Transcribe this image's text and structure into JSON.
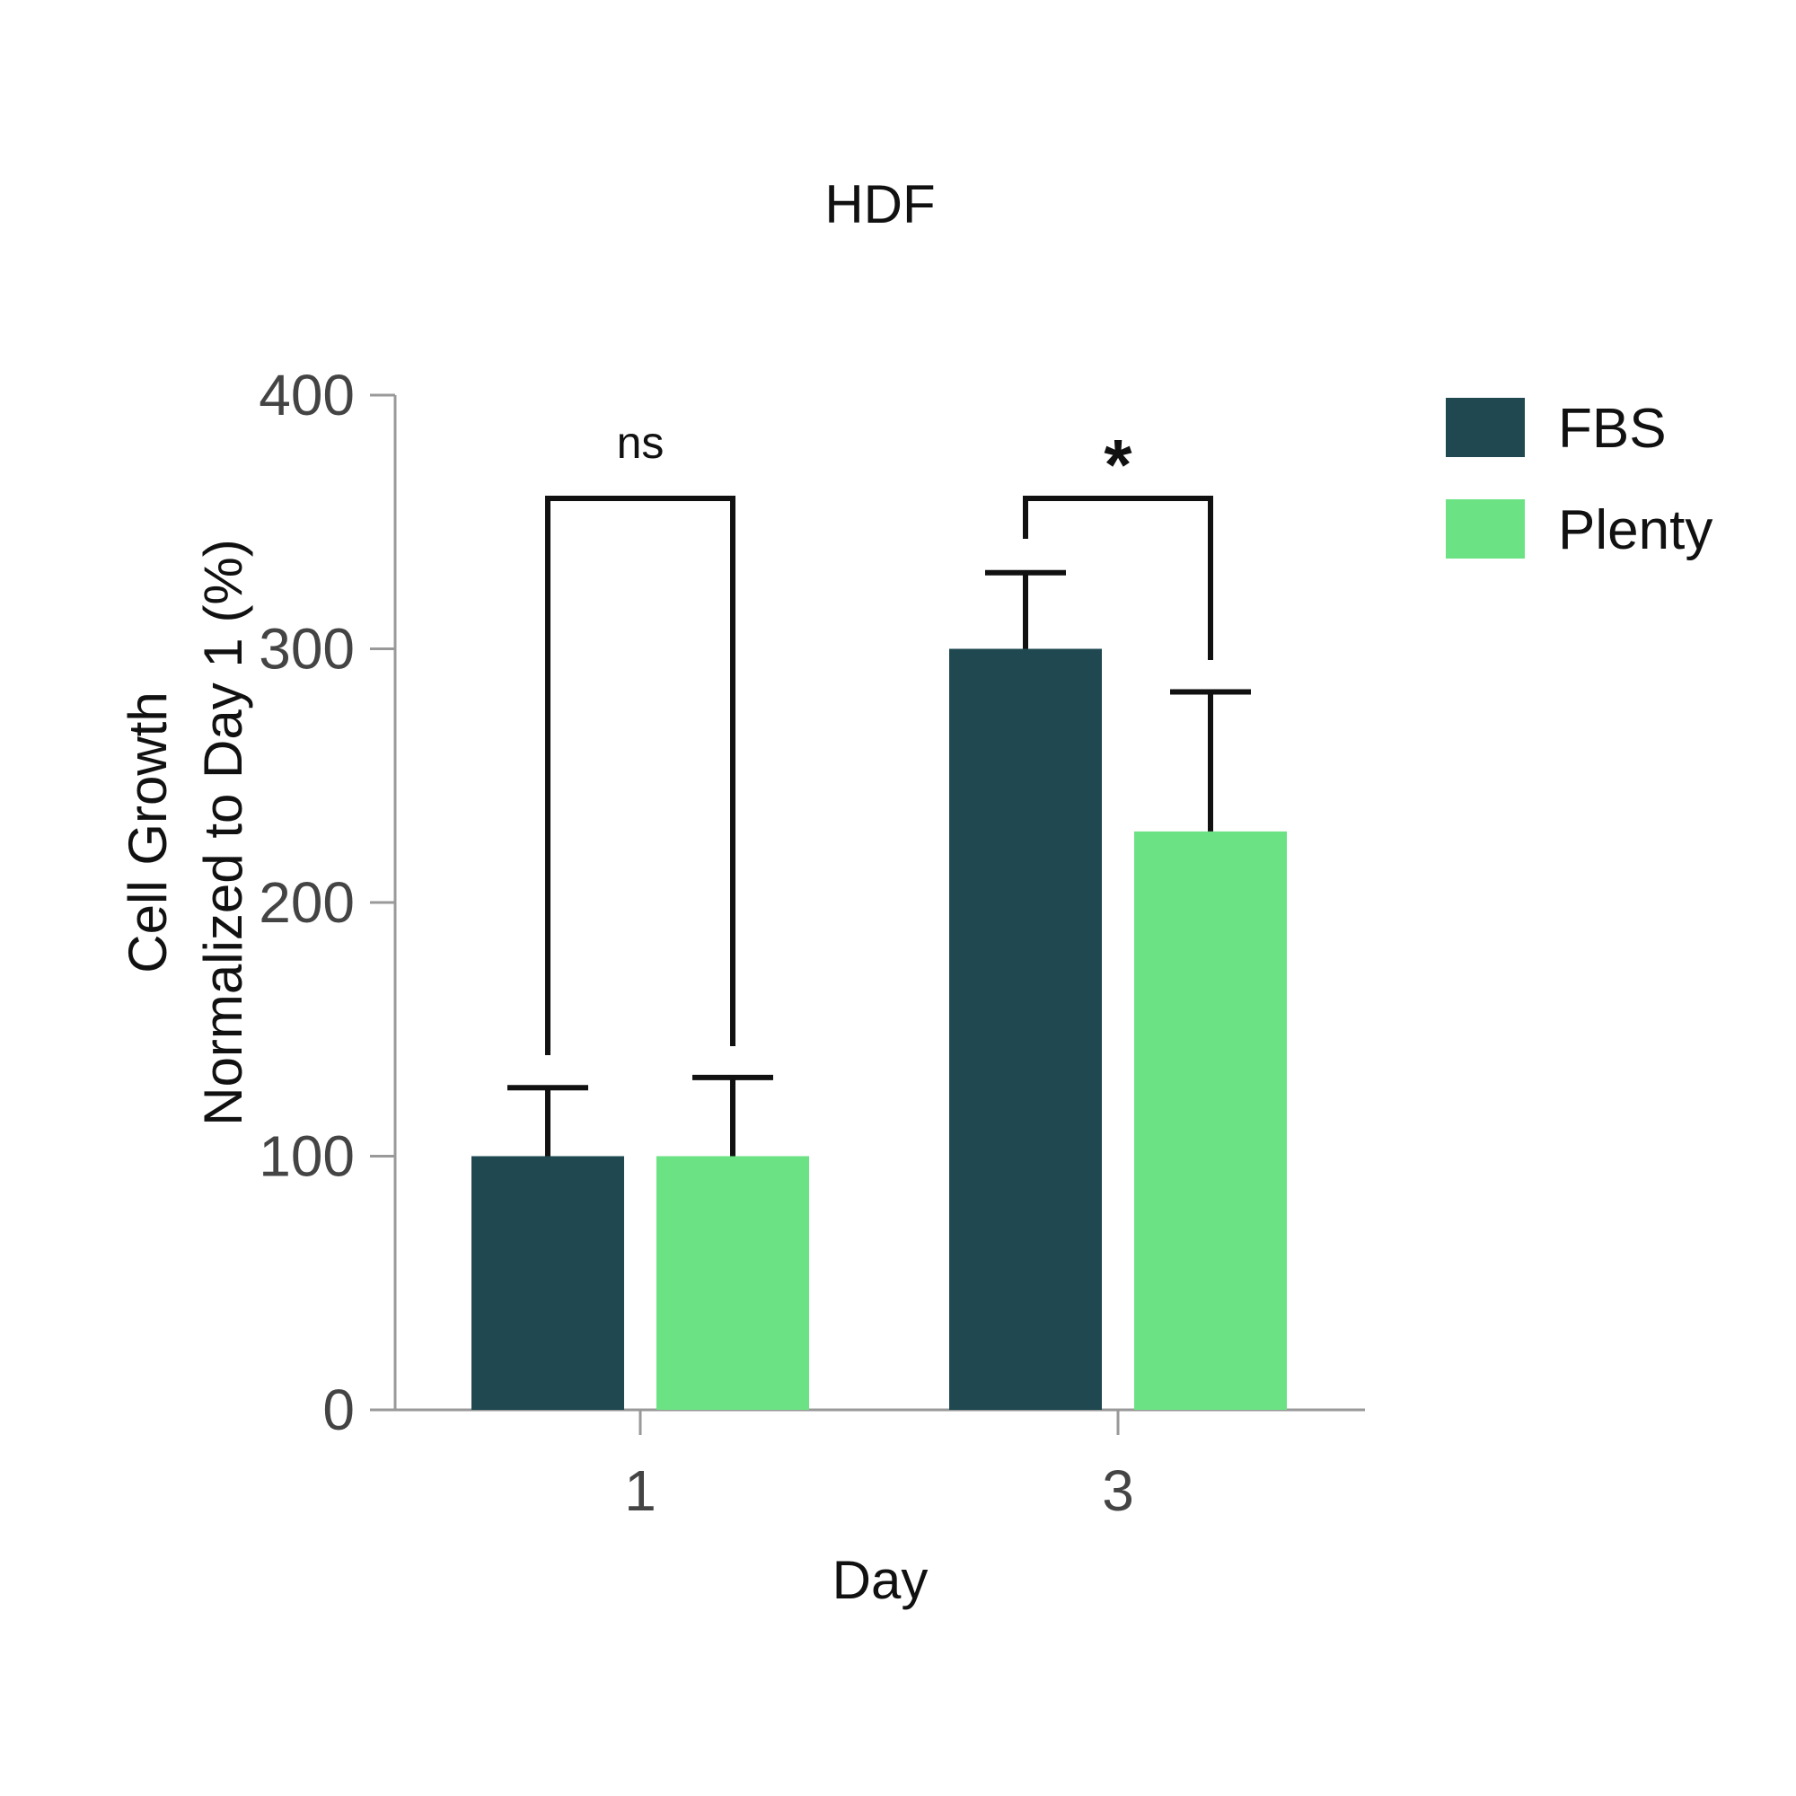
{
  "chart_data": {
    "type": "bar",
    "title": "HDF",
    "xlabel": "Day",
    "ylabel_lines": [
      "Cell Growth",
      "Normalized to Day 1 (%)"
    ],
    "ylim": [
      0,
      400
    ],
    "yticks": [
      "0",
      "100",
      "200",
      "300",
      "400"
    ],
    "categories": [
      "1",
      "3"
    ],
    "series": [
      {
        "name": "FBS",
        "color": "#1f4851",
        "values": [
          100,
          300
        ],
        "errors": [
          27,
          30
        ]
      },
      {
        "name": "Plenty",
        "color": "#6be283",
        "values": [
          100,
          228
        ],
        "errors": [
          31,
          55
        ]
      }
    ],
    "significance": [
      {
        "category": "1",
        "label": "ns"
      },
      {
        "category": "3",
        "label": "*"
      }
    ],
    "legend_position": "top-right",
    "grid": false
  }
}
